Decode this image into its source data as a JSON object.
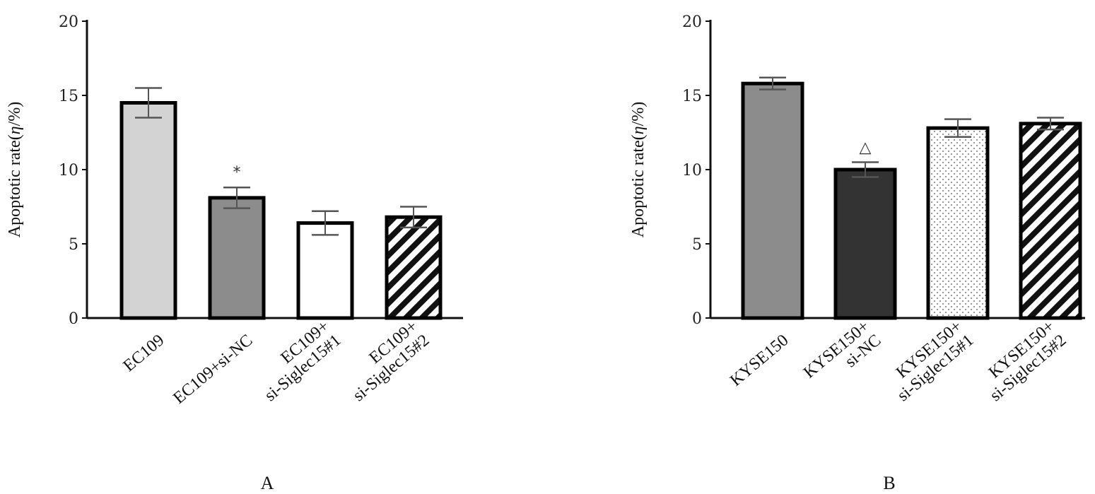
{
  "chart_data": [
    {
      "type": "bar",
      "panel_label": "A",
      "ylabel_main": "Apoptotic rate(",
      "ylabel_italic": "η",
      "ylabel_tail": "/%)",
      "ylim": [
        0,
        20
      ],
      "yticks": [
        "0",
        "5",
        "10",
        "15",
        "20"
      ],
      "categories": [
        [
          "EC109"
        ],
        [
          "EC109+si-NC"
        ],
        [
          "EC109+",
          "si-Siglec15#1"
        ],
        [
          "EC109+",
          "si-Siglec15#2"
        ]
      ],
      "values": [
        14.5,
        8.1,
        6.4,
        6.8
      ],
      "errors": [
        1.0,
        0.7,
        0.8,
        0.7
      ],
      "fills": [
        "light-gray",
        "mid-gray",
        "white",
        "hatch"
      ],
      "annotations": [
        {
          "index": 1,
          "text": "*"
        }
      ]
    },
    {
      "type": "bar",
      "panel_label": "B",
      "ylabel_main": "Apoptotic rate(",
      "ylabel_italic": "η",
      "ylabel_tail": "/%)",
      "ylim": [
        0,
        20
      ],
      "yticks": [
        "0",
        "5",
        "10",
        "15",
        "20"
      ],
      "categories": [
        [
          "KYSE150"
        ],
        [
          "KYSE150+",
          "si-NC"
        ],
        [
          "KYSE150+",
          "si-Siglec15#1"
        ],
        [
          "KYSE150+",
          "si-Siglec15#2"
        ]
      ],
      "values": [
        15.8,
        10.0,
        12.8,
        13.1
      ],
      "errors": [
        0.4,
        0.5,
        0.6,
        0.4
      ],
      "fills": [
        "mid-gray",
        "dark-gray",
        "dots",
        "hatch"
      ],
      "annotations": [
        {
          "index": 1,
          "text": "△"
        }
      ]
    }
  ],
  "colors": {
    "light-gray": "#d3d3d3",
    "mid-gray": "#8c8c8c",
    "dark-gray": "#333333",
    "white": "#ffffff",
    "axis": "#111111",
    "error": "#555555"
  }
}
